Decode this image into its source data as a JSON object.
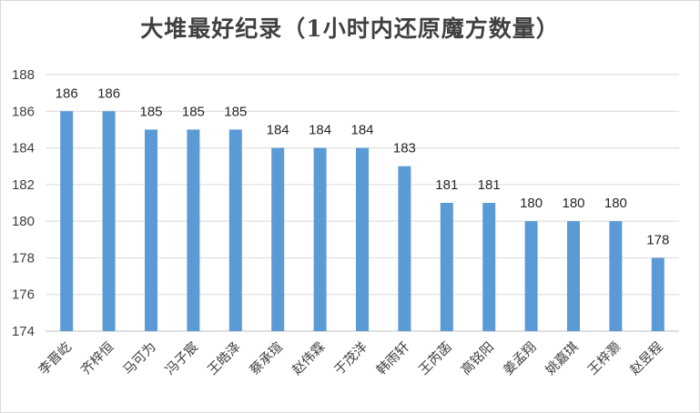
{
  "chart_data": {
    "type": "bar",
    "title": "大堆最好纪录（1小时内还原魔方数量）",
    "xlabel": "",
    "ylabel": "",
    "categories": [
      "李晋屹",
      "齐梓恒",
      "马可为",
      "冯子宸",
      "王皓泽",
      "蔡承瑄",
      "赵伟霖",
      "于茂洋",
      "韩雨轩",
      "王芮菡",
      "高铭阳",
      "姜孟翔",
      "姚嘉琪",
      "王梓灏",
      "赵昱程"
    ],
    "values": [
      186,
      186,
      185,
      185,
      185,
      184,
      184,
      184,
      183,
      181,
      181,
      180,
      180,
      180,
      178
    ],
    "ylim": [
      174,
      188
    ],
    "yticks": [
      "174",
      "176",
      "178",
      "180",
      "182",
      "184",
      "186",
      "188"
    ],
    "grid": true,
    "legend": "none",
    "colors": {
      "bar": "#5b9bd5",
      "grid": "#d9d9d9",
      "axis": "#bfbfbf"
    }
  }
}
